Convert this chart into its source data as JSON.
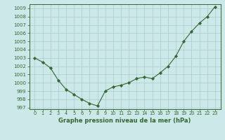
{
  "x": [
    0,
    1,
    2,
    3,
    4,
    5,
    6,
    7,
    8,
    9,
    10,
    11,
    12,
    13,
    14,
    15,
    16,
    17,
    18,
    19,
    20,
    21,
    22,
    23
  ],
  "y": [
    1003.0,
    1002.5,
    1001.8,
    1000.3,
    999.2,
    998.6,
    998.0,
    997.5,
    997.2,
    999.0,
    999.5,
    999.7,
    1000.0,
    1000.5,
    1000.7,
    1000.5,
    1001.2,
    1002.0,
    1003.2,
    1005.0,
    1006.2,
    1007.2,
    1008.0,
    1009.2
  ],
  "ylim_min": 996.8,
  "ylim_max": 1009.5,
  "yticks": [
    997,
    998,
    999,
    1000,
    1001,
    1002,
    1003,
    1004,
    1005,
    1006,
    1007,
    1008,
    1009
  ],
  "xticks": [
    0,
    1,
    2,
    3,
    4,
    5,
    6,
    7,
    8,
    9,
    10,
    11,
    12,
    13,
    14,
    15,
    16,
    17,
    18,
    19,
    20,
    21,
    22,
    23
  ],
  "xlabel": "Graphe pression niveau de la mer (hPa)",
  "line_color": "#336633",
  "marker_color": "#336633",
  "bg_color": "#cce8e8",
  "grid_color": "#aacccc",
  "outer_bg": "#cce8e8"
}
